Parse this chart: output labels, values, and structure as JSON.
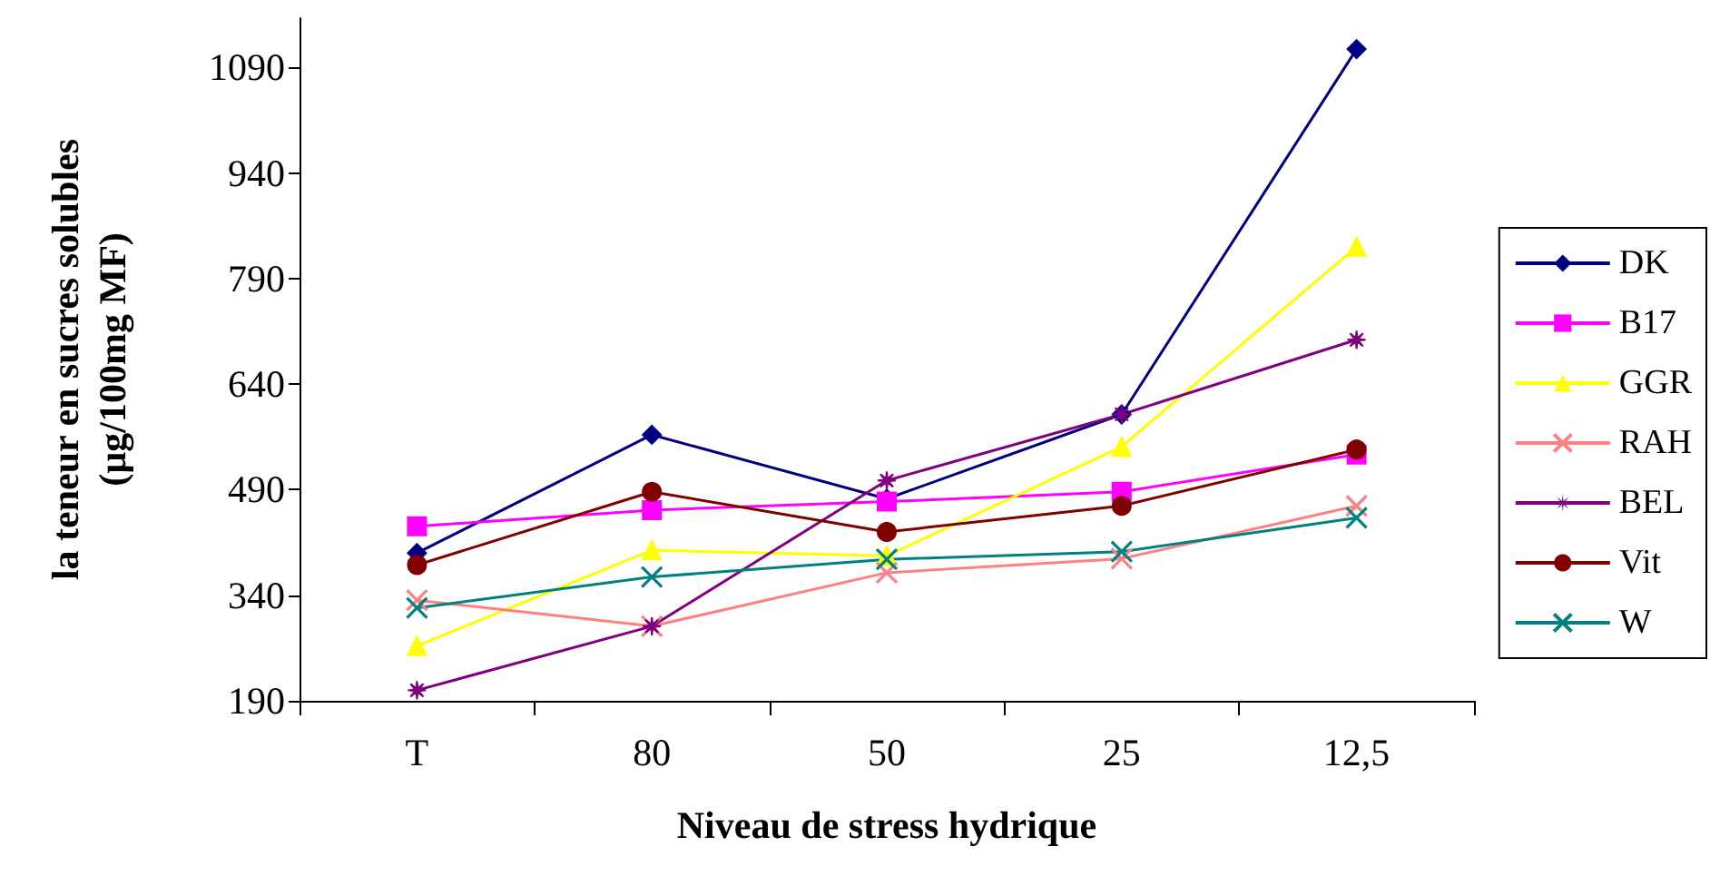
{
  "chart_data": {
    "type": "line",
    "xlabel": "Niveau de stress hydrique",
    "ylabel": "la teneur en sucres solubles\n(µg/100mg MF)",
    "categories": [
      "T",
      "80",
      "50",
      "25",
      "12,5"
    ],
    "ylim": [
      190,
      1160
    ],
    "yticks": [
      190,
      340,
      490,
      640,
      790,
      940,
      1090
    ],
    "grid": false,
    "legend": "right",
    "line_style": "solid",
    "series": [
      {
        "name": "DK",
        "color": "#000080",
        "marker": "diamond",
        "values": [
          400,
          568,
          477,
          597,
          1116
        ]
      },
      {
        "name": "B17",
        "color": "#ff00ff",
        "marker": "square",
        "values": [
          438,
          461,
          473,
          487,
          540
        ]
      },
      {
        "name": "GGR",
        "color": "#ffff00",
        "marker": "triangle",
        "values": [
          268,
          404,
          396,
          551,
          835
        ]
      },
      {
        "name": "RAH",
        "color": "#ff8080",
        "marker": "cross",
        "values": [
          333,
          296,
          372,
          392,
          467
        ]
      },
      {
        "name": "BEL",
        "color": "#800080",
        "marker": "star",
        "values": [
          205,
          296,
          503,
          597,
          703
        ]
      },
      {
        "name": "Vit",
        "color": "#800000",
        "marker": "circle",
        "values": [
          383,
          487,
          430,
          467,
          547
        ]
      },
      {
        "name": "W",
        "color": "#008080",
        "marker": "cross",
        "values": [
          322,
          366,
          391,
          402,
          450
        ]
      }
    ]
  }
}
